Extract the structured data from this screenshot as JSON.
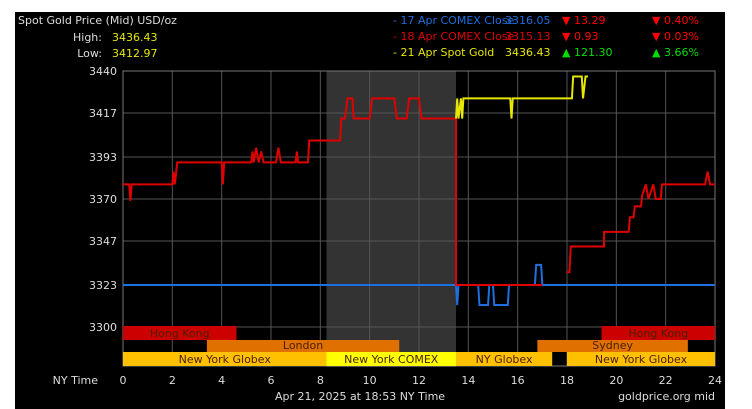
{
  "header": {
    "title": "Spot Gold Price (Mid) USD/oz",
    "high_label": "High:",
    "high": "3436.43",
    "low_label": "Low:",
    "low": "3412.97"
  },
  "legend": [
    {
      "label": "- 17 Apr COMEX Close",
      "price": "3316.05",
      "dir": "down",
      "change": "13.29",
      "pct": "0.40%",
      "color": "#1e6fe0"
    },
    {
      "label": "- 18 Apr COMEX Close",
      "price": "3315.13",
      "dir": "down",
      "change": "0.93",
      "pct": "0.03%",
      "color": "#e00000"
    },
    {
      "label": "- 21 Apr Spot Gold",
      "price": "3436.43",
      "dir": "up",
      "change": "121.30",
      "pct": "3.66%",
      "color": "#e6e600"
    }
  ],
  "colors": {
    "up": "#00dd00",
    "down": "#ff0000",
    "grid": "#555555",
    "shade": "#333333"
  },
  "footer": {
    "axis_label": "NY Time",
    "timestamp": "Apr 21, 2025 at 18:53 NY Time",
    "source": "goldprice.org mid"
  },
  "chart_data": {
    "type": "line",
    "xlim": [
      0,
      24
    ],
    "ylim": [
      3300,
      3440
    ],
    "xticks": [
      0,
      2,
      4,
      6,
      8,
      10,
      12,
      14,
      16,
      18,
      20,
      22,
      24
    ],
    "yticks": [
      3300,
      3323,
      3347,
      3370,
      3393,
      3417,
      3440
    ],
    "shaded_hours": [
      8.25,
      13.5
    ],
    "sessions": [
      {
        "name": "Hong Kong",
        "row": 0,
        "start": 0,
        "end": 4.6,
        "color": "#cc0000"
      },
      {
        "name": "Hong Kong",
        "row": 0,
        "start": 19.4,
        "end": 24,
        "color": "#cc0000"
      },
      {
        "name": "London",
        "row": 1,
        "start": 3.4,
        "end": 11.2,
        "color": "#e07000"
      },
      {
        "name": "Sydney",
        "row": 1,
        "start": 16.8,
        "end": 22.9,
        "color": "#e07000"
      },
      {
        "name": "New York Globex",
        "row": 2,
        "start": 0,
        "end": 8.25,
        "color": "#ffc000"
      },
      {
        "name": "New York COMEX",
        "row": 2,
        "start": 8.25,
        "end": 13.5,
        "color": "#ffff00"
      },
      {
        "name": "NY Globex",
        "row": 2,
        "start": 13.5,
        "end": 17.4,
        "color": "#ffc000"
      },
      {
        "name": "New York Globex",
        "row": 2,
        "start": 18,
        "end": 24,
        "color": "#ffc000"
      }
    ],
    "series": [
      {
        "name": "17 Apr COMEX Close",
        "color": "#1e6fe0",
        "points": [
          [
            0,
            3323
          ],
          [
            13.5,
            3323
          ],
          [
            13.55,
            3312
          ],
          [
            13.6,
            3323
          ],
          [
            14.4,
            3323
          ],
          [
            14.45,
            3312
          ],
          [
            14.8,
            3312
          ],
          [
            14.85,
            3323
          ],
          [
            15,
            3323
          ],
          [
            15.05,
            3312
          ],
          [
            15.6,
            3312
          ],
          [
            15.65,
            3323
          ],
          [
            16.7,
            3323
          ],
          [
            16.75,
            3334
          ],
          [
            16.95,
            3334
          ],
          [
            17,
            3323
          ],
          [
            24,
            3323
          ]
        ]
      },
      {
        "name": "18 Apr COMEX Close",
        "color": "#e00000",
        "points": [
          [
            0,
            3378
          ],
          [
            0.25,
            3378
          ],
          [
            0.3,
            3369
          ],
          [
            0.35,
            3378
          ],
          [
            2,
            3378
          ],
          [
            2.05,
            3385
          ],
          [
            2.1,
            3378
          ],
          [
            2.2,
            3390
          ],
          [
            4,
            3390
          ],
          [
            4.05,
            3378
          ],
          [
            4.1,
            3390
          ],
          [
            5.2,
            3390
          ],
          [
            5.25,
            3396
          ],
          [
            5.3,
            3390
          ],
          [
            5.4,
            3398
          ],
          [
            5.5,
            3390
          ],
          [
            5.6,
            3396
          ],
          [
            5.7,
            3390
          ],
          [
            6.2,
            3390
          ],
          [
            6.3,
            3398
          ],
          [
            6.4,
            3390
          ],
          [
            7,
            3390
          ],
          [
            7.05,
            3396
          ],
          [
            7.1,
            3390
          ],
          [
            7.5,
            3390
          ],
          [
            7.55,
            3402
          ],
          [
            8.8,
            3402
          ],
          [
            8.85,
            3414
          ],
          [
            9,
            3414
          ],
          [
            9.1,
            3425
          ],
          [
            9.3,
            3425
          ],
          [
            9.35,
            3414
          ],
          [
            10,
            3414
          ],
          [
            10.1,
            3425
          ],
          [
            11,
            3425
          ],
          [
            11.1,
            3414
          ],
          [
            11.5,
            3414
          ],
          [
            11.6,
            3425
          ],
          [
            12,
            3425
          ],
          [
            12.1,
            3414
          ],
          [
            13.5,
            3414
          ],
          [
            13.5,
            3323
          ],
          [
            17,
            3323
          ]
        ]
      },
      {
        "name": "18 Apr COMEX Close late",
        "color": "#e00000",
        "points": [
          [
            18,
            3330
          ],
          [
            18.1,
            3330
          ],
          [
            18.15,
            3344
          ],
          [
            19.5,
            3344
          ],
          [
            19.5,
            3352
          ],
          [
            20.5,
            3352
          ],
          [
            20.55,
            3360
          ],
          [
            20.7,
            3360
          ],
          [
            20.75,
            3366
          ],
          [
            21,
            3366
          ],
          [
            21.05,
            3372
          ],
          [
            21.2,
            3378
          ],
          [
            21.3,
            3370
          ],
          [
            21.5,
            3378
          ],
          [
            21.6,
            3370
          ],
          [
            21.8,
            3370
          ],
          [
            21.85,
            3378
          ],
          [
            23.6,
            3378
          ],
          [
            23.7,
            3385
          ],
          [
            23.8,
            3378
          ],
          [
            24,
            3378
          ]
        ]
      },
      {
        "name": "21 Apr Spot Gold",
        "color": "#e6e600",
        "points": [
          [
            13.5,
            3414
          ],
          [
            13.55,
            3425
          ],
          [
            13.6,
            3414
          ],
          [
            13.7,
            3425
          ],
          [
            13.75,
            3414
          ],
          [
            13.8,
            3425
          ],
          [
            15.7,
            3425
          ],
          [
            15.75,
            3414
          ],
          [
            15.8,
            3425
          ],
          [
            18.2,
            3425
          ],
          [
            18.25,
            3437
          ],
          [
            18.6,
            3437
          ],
          [
            18.65,
            3425
          ],
          [
            18.75,
            3437
          ],
          [
            18.85,
            3437
          ]
        ]
      }
    ]
  }
}
